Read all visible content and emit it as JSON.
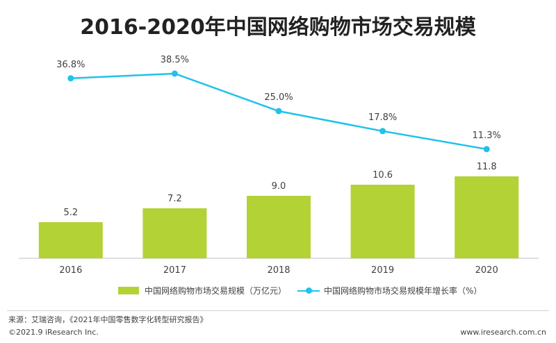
{
  "title": "2016-2020年中国网络购物市场交易规模",
  "chart_data": {
    "type": "bar",
    "categories": [
      "2016",
      "2017",
      "2018",
      "2019",
      "2020"
    ],
    "series": [
      {
        "name": "中国网络购物市场交易规模（万亿元）",
        "type": "bar",
        "values": [
          5.2,
          7.2,
          9.0,
          10.6,
          11.8
        ],
        "labels": [
          "5.2",
          "7.2",
          "9.0",
          "10.6",
          "11.8"
        ],
        "color": "#b3d235"
      },
      {
        "name": "中国网络购物市场交易规模年增长率（%）",
        "type": "line",
        "values": [
          36.8,
          38.5,
          25.0,
          17.8,
          11.3
        ],
        "labels": [
          "36.8%",
          "38.5%",
          "25.0%",
          "17.8%",
          "11.3%"
        ],
        "color": "#20c1ea"
      }
    ],
    "legend_position": "bottom",
    "grid": false
  },
  "source": "来源：艾瑞咨询，《2021年中国零售数字化转型研究报告》",
  "copyright": "©2021.9 iResearch Inc.",
  "website": "www.iresearch.com.cn"
}
